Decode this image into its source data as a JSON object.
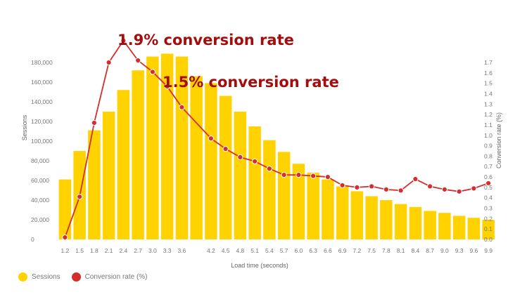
{
  "chart_data": {
    "type": "bar+line",
    "x": [
      "1.2",
      "1.5",
      "1.8",
      "2.1",
      "2.4",
      "2.7",
      "3.0",
      "3.3",
      "3.6",
      "3.9",
      "4.2",
      "4.5",
      "4.8",
      "5.1",
      "5.4",
      "5.7",
      "6.0",
      "6.3",
      "6.6",
      "6.9",
      "7.2",
      "7.5",
      "7.8",
      "8.1",
      "8.4",
      "8.7",
      "9.0",
      "9.3",
      "9.6",
      "9.9"
    ],
    "x_ticks": [
      "1.2",
      "1.5",
      "1.8",
      "2.1",
      "2.4",
      "2.7",
      "3.0",
      "3.3",
      "3.6",
      "4.2",
      "4.5",
      "4.8",
      "5.1",
      "5.4",
      "5.7",
      "6.0",
      "6.3",
      "6.6",
      "6.9",
      "7.2",
      "7.5",
      "7.8",
      "8.1",
      "8.4",
      "8.7",
      "9.0",
      "9.3",
      "9.6",
      "9.9"
    ],
    "series": [
      {
        "name": "Sessions",
        "type": "bar",
        "axis": "left",
        "color": "#FFD200",
        "values": [
          61000,
          90000,
          111000,
          130000,
          152000,
          172000,
          186000,
          189000,
          186000,
          166000,
          159000,
          146000,
          130000,
          115000,
          101000,
          89000,
          77000,
          68000,
          61000,
          54000,
          49000,
          44000,
          40000,
          36000,
          33000,
          29000,
          27000,
          24000,
          22000,
          20000
        ]
      },
      {
        "name": "Conversion rate (%)",
        "type": "line",
        "axis": "right",
        "color": "#D32F2F",
        "values": [
          0.02,
          0.41,
          1.12,
          1.7,
          1.91,
          1.72,
          1.61,
          1.47,
          1.27,
          null,
          0.97,
          0.87,
          0.79,
          0.75,
          0.68,
          0.62,
          0.62,
          0.61,
          0.6,
          0.52,
          0.5,
          0.51,
          0.48,
          0.47,
          0.58,
          0.51,
          0.48,
          0.46,
          0.49,
          0.54
        ]
      }
    ],
    "xlabel": "Load time (seconds)",
    "ylabel": "Sessions",
    "y2label": "Conversion rate (%)",
    "ylim": [
      0,
      190000
    ],
    "y2lim": [
      0,
      1.8
    ],
    "y_ticks": [
      "0",
      "20,000",
      "40,000",
      "60,000",
      "80,000",
      "100,000",
      "120,000",
      "140,000",
      "160,000",
      "180,000"
    ],
    "y2_ticks": [
      "0.0",
      "0.1",
      "0.2",
      "0.3",
      "0.4",
      "0.5",
      "0.6",
      "0.7",
      "0.8",
      "0.9",
      "1.0",
      "1.1",
      "1.2",
      "1.3",
      "1.4",
      "1.5",
      "1.6",
      "1.7"
    ],
    "annotations": [
      {
        "text": "1.9% conversion rate",
        "x": "2.4"
      },
      {
        "text": "1.5% conversion rate",
        "x": "3.3"
      }
    ],
    "grid": false,
    "legend": "bottom-left"
  },
  "legend": {
    "sessions_label": "Sessions",
    "sessions_color": "#FFD200",
    "conversion_label": "Conversion rate (%)",
    "conversion_color": "#D32F2F"
  }
}
